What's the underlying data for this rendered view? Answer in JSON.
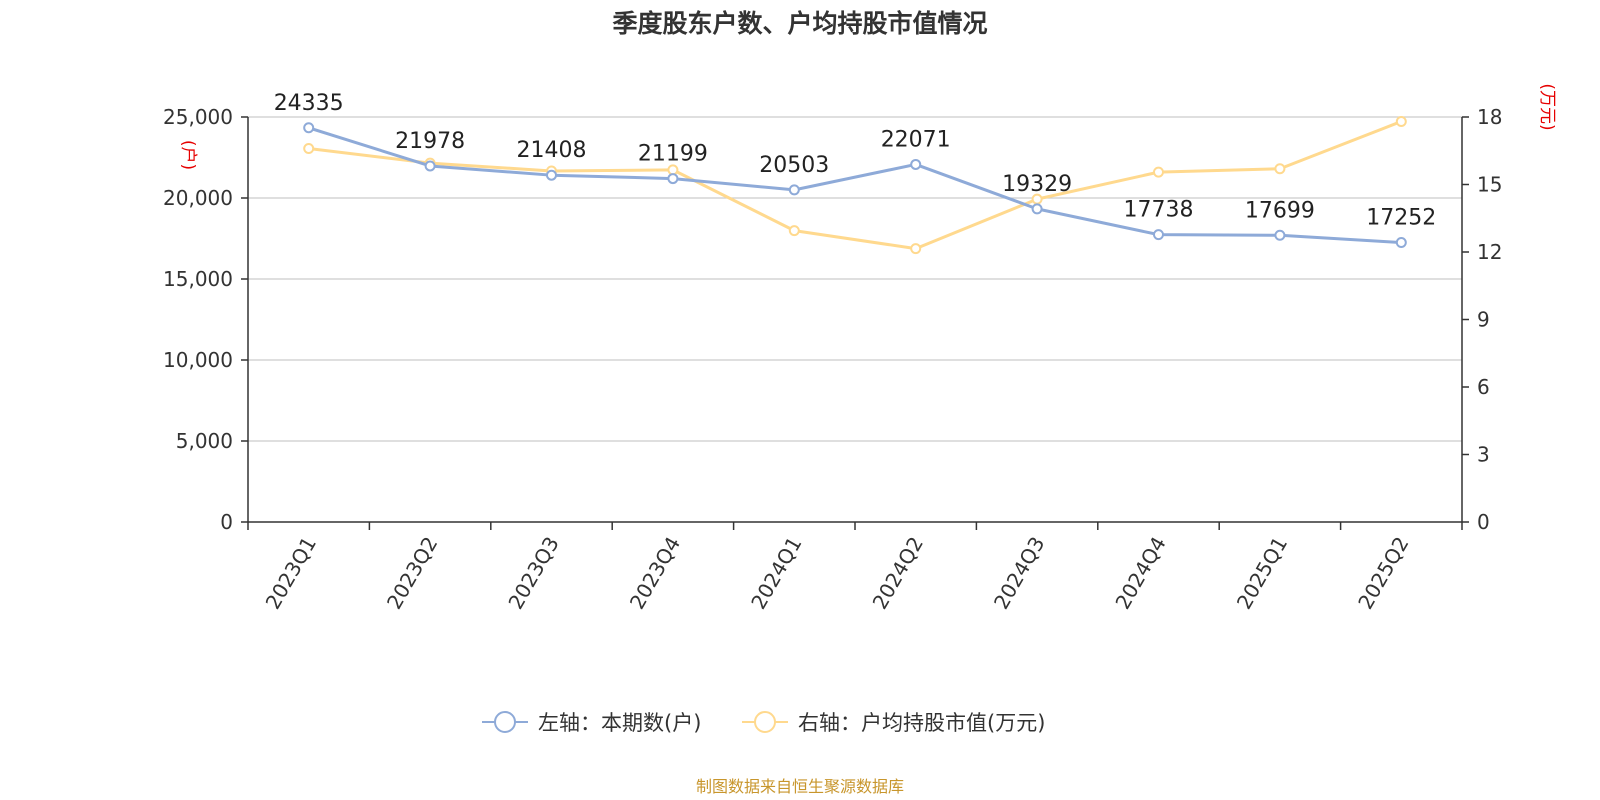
{
  "chart_data": {
    "type": "line",
    "title": "季度股东户数、户均持股市值情况",
    "categories": [
      "2023Q1",
      "2023Q2",
      "2023Q3",
      "2023Q4",
      "2024Q1",
      "2024Q2",
      "2024Q3",
      "2024Q4",
      "2025Q1",
      "2025Q2"
    ],
    "y_left": {
      "unit": "(户)",
      "min": 0,
      "max": 25000,
      "ticks": [
        0,
        5000,
        10000,
        15000,
        20000,
        25000
      ],
      "tick_labels": [
        "0",
        "5,000",
        "10,000",
        "15,000",
        "20,000",
        "25,000"
      ]
    },
    "y_right": {
      "unit": "(万元)",
      "min": 0,
      "max": 18,
      "ticks": [
        0,
        3,
        6,
        9,
        12,
        15,
        18
      ],
      "tick_labels": [
        "0",
        "3",
        "6",
        "9",
        "12",
        "15",
        "18"
      ]
    },
    "grid": true,
    "legend_position": "bottom-center",
    "series": [
      {
        "name": "左轴：本期数(户)",
        "axis": "left",
        "color": "#8eaad8",
        "values": [
          24335,
          21978,
          21408,
          21199,
          20503,
          22071,
          19329,
          17738,
          17699,
          17252
        ],
        "labels": [
          "24335",
          "21978",
          "21408",
          "21199",
          "20503",
          "22071",
          "19329",
          "17738",
          "17699",
          "17252"
        ]
      },
      {
        "name": "右轴：户均持股市值(万元)",
        "axis": "right",
        "color": "#ffd98e",
        "values": [
          16.6,
          15.95,
          15.6,
          15.65,
          12.95,
          12.15,
          14.35,
          15.55,
          15.7,
          17.8
        ]
      }
    ],
    "source": "制图数据来自恒生聚源数据库"
  }
}
